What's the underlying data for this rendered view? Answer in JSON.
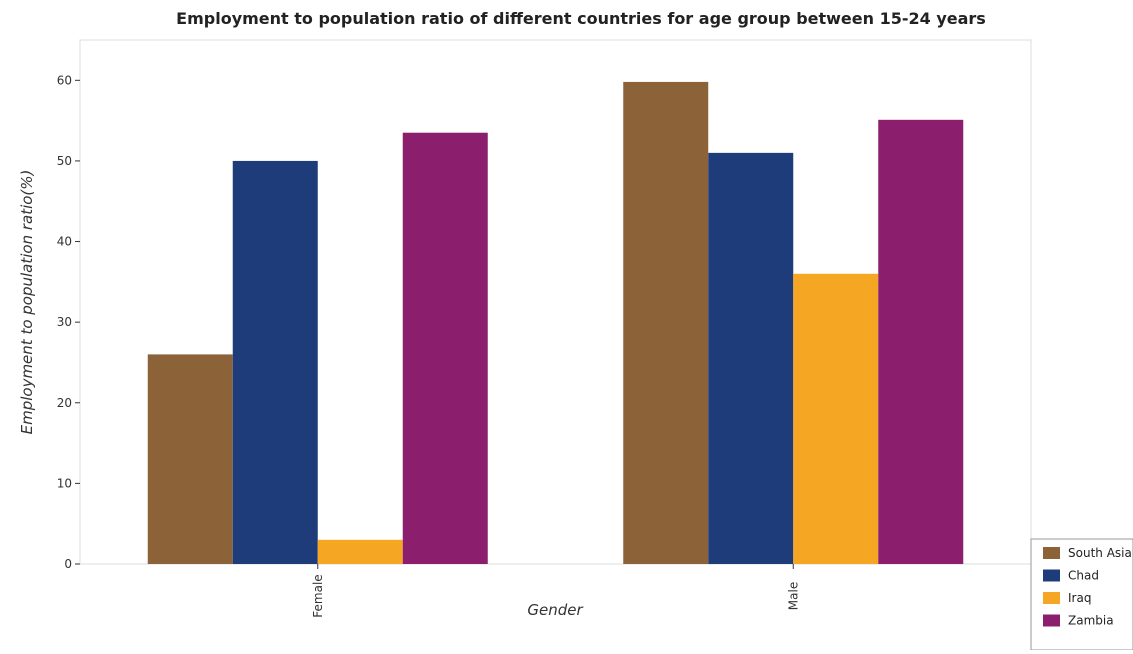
{
  "chart_data": {
    "type": "bar",
    "title": "Employment to population ratio of different countries for age group between 15-24 years",
    "xlabel": "Gender",
    "ylabel": "Employment to population ratio(%)",
    "categories": [
      "Female",
      "Male"
    ],
    "ylim": [
      0,
      65
    ],
    "yticks": [
      0,
      10,
      20,
      30,
      40,
      50,
      60
    ],
    "grid": false,
    "legend_position": "bottom-right",
    "series": [
      {
        "name": "South Asia",
        "color": "#8c6239",
        "values": [
          26.0,
          59.8
        ]
      },
      {
        "name": "Chad",
        "color": "#1f3c7a",
        "values": [
          50.0,
          51.0
        ]
      },
      {
        "name": "Iraq",
        "color": "#f5a623",
        "values": [
          3.0,
          36.0
        ]
      },
      {
        "name": "Zambia",
        "color": "#8b1f6e",
        "values": [
          53.5,
          55.1
        ]
      }
    ]
  }
}
